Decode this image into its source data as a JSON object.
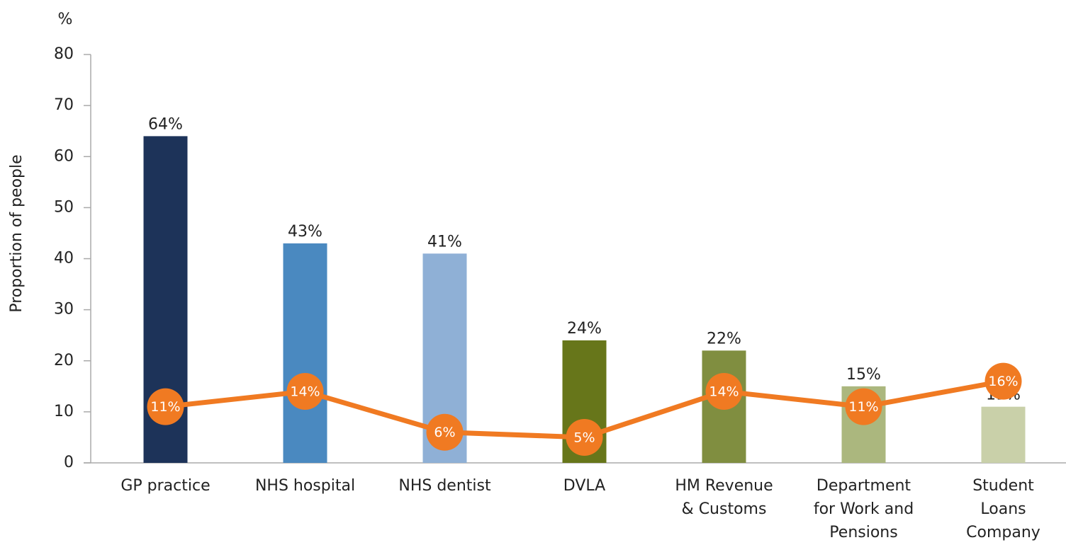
{
  "chart_data": {
    "type": "bar",
    "y_unit": "%",
    "ylabel": "Proportion of people",
    "categories": [
      "GP practice",
      "NHS hospital",
      "NHS dentist",
      "DVLA",
      "HM Revenue\n& Customs",
      "Department\nfor Work and\nPensions",
      "Student\nLoans\nCompany"
    ],
    "ylim": [
      0,
      80
    ],
    "yticks": [
      0,
      10,
      20,
      30,
      40,
      50,
      60,
      70,
      80
    ],
    "series": [
      {
        "type": "bar",
        "colors": [
          "#1d3359",
          "#4a89c0",
          "#8fb0d6",
          "#67761a",
          "#808e40",
          "#abb77e",
          "#c9d0a9"
        ],
        "values": [
          64,
          43,
          41,
          24,
          22,
          15,
          11
        ],
        "value_labels": [
          "64%",
          "43%",
          "41%",
          "24%",
          "22%",
          "15%",
          "11%"
        ]
      },
      {
        "type": "line",
        "color": "#f07a22",
        "values": [
          11,
          14,
          6,
          5,
          14,
          11,
          16
        ],
        "value_labels": [
          "11%",
          "14%",
          "6%",
          "5%",
          "14%",
          "11%",
          "16%"
        ]
      }
    ]
  }
}
